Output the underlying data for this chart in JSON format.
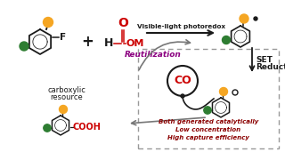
{
  "bg_color": "#ffffff",
  "orange": "#F5A623",
  "green": "#2E7D32",
  "red": "#CC0000",
  "crimson": "#8B0000",
  "black": "#1a1a1a",
  "gray": "#777777",
  "purple": "#8B0080",
  "dash_color": "#999999",
  "arrow_label": "Visible-light photoredox",
  "reutil_label": "Reutilization",
  "set_label_1": "SET",
  "set_label_2": "Reduction",
  "carb_label_1": "carboxylic",
  "carb_label_2": "resource",
  "co_label": "CO",
  "txt1": "Both generated catalytically",
  "txt2": "Low concentration",
  "txt3": "High capture efficiency"
}
